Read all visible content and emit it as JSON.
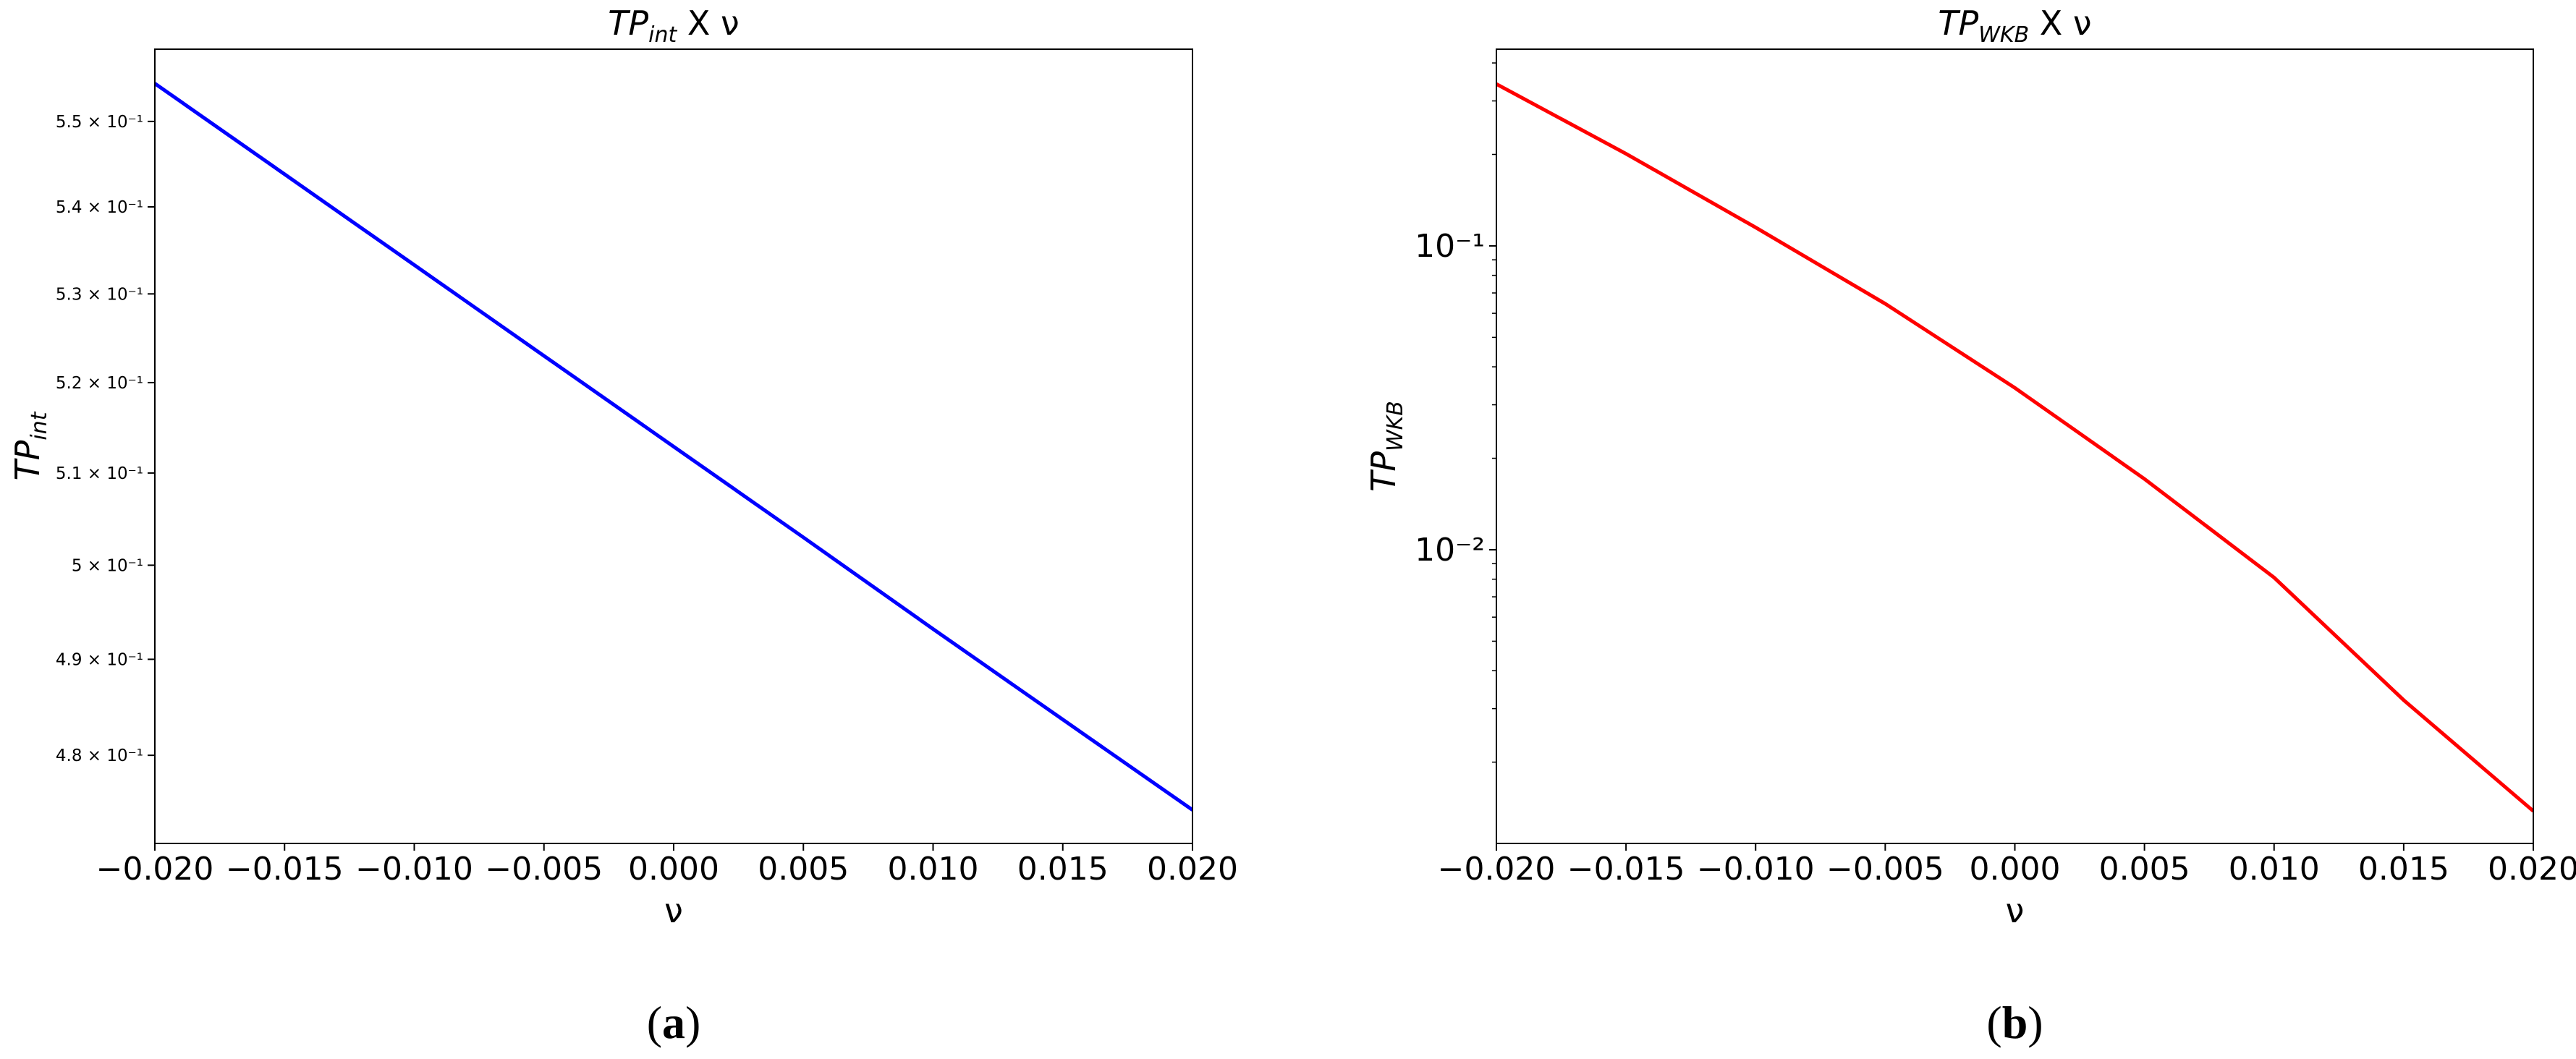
{
  "chart_data": [
    {
      "type": "line",
      "title": [
        "TP",
        "int",
        " X ν"
      ],
      "ylabel": [
        "TP",
        "int"
      ],
      "xlabel": "ν",
      "caption": [
        "(",
        "a",
        ")"
      ],
      "yscale": "log",
      "x": [
        -0.02,
        -0.015,
        -0.01,
        -0.005,
        0.0,
        0.005,
        0.01,
        0.015,
        0.02
      ],
      "series": [
        {
          "color": "#0000ff",
          "values": [
            0.5545,
            0.5438,
            0.5333,
            0.523,
            0.5129,
            0.503,
            0.4932,
            0.4837,
            0.4744
          ]
        }
      ],
      "xlim": [
        -0.02,
        0.02
      ],
      "xticks": [
        {
          "value": -0.02,
          "label": "−0.020"
        },
        {
          "value": -0.015,
          "label": "−0.015"
        },
        {
          "value": -0.01,
          "label": "−0.010"
        },
        {
          "value": -0.005,
          "label": "−0.005"
        },
        {
          "value": 0.0,
          "label": "0.000"
        },
        {
          "value": 0.005,
          "label": "0.005"
        },
        {
          "value": 0.01,
          "label": "0.010"
        },
        {
          "value": 0.015,
          "label": "0.015"
        },
        {
          "value": 0.02,
          "label": "0.020"
        }
      ],
      "ylim": [
        0.471,
        0.5586
      ],
      "yticks": [
        {
          "value": 0.48,
          "label": "4.8 × 10⁻¹"
        },
        {
          "value": 0.49,
          "label": "4.9 × 10⁻¹"
        },
        {
          "value": 0.5,
          "label": "5 × 10⁻¹"
        },
        {
          "value": 0.51,
          "label": "5.1 × 10⁻¹"
        },
        {
          "value": 0.52,
          "label": "5.2 × 10⁻¹"
        },
        {
          "value": 0.53,
          "label": "5.3 × 10⁻¹"
        },
        {
          "value": 0.54,
          "label": "5.4 × 10⁻¹"
        },
        {
          "value": 0.55,
          "label": "5.5 × 10⁻¹"
        }
      ]
    },
    {
      "type": "line",
      "title": [
        "TP",
        "WKB",
        " X ν"
      ],
      "ylabel": [
        "TP",
        "WKB"
      ],
      "xlabel": "ν",
      "caption": [
        "(",
        "b",
        ")"
      ],
      "yscale": "log",
      "x": [
        -0.02,
        -0.015,
        -0.01,
        -0.005,
        0.0,
        0.005,
        0.01,
        0.015,
        0.02
      ],
      "series": [
        {
          "color": "#ff0000",
          "values": [
            0.341,
            0.201,
            0.115,
            0.0645,
            0.0341,
            0.0171,
            0.0081,
            0.0032,
            0.00138
          ]
        }
      ],
      "xlim": [
        -0.02,
        0.02
      ],
      "xticks": [
        {
          "value": -0.02,
          "label": "−0.020"
        },
        {
          "value": -0.015,
          "label": "−0.015"
        },
        {
          "value": -0.01,
          "label": "−0.010"
        },
        {
          "value": -0.005,
          "label": "−0.005"
        },
        {
          "value": 0.0,
          "label": "0.000"
        },
        {
          "value": 0.005,
          "label": "0.005"
        },
        {
          "value": 0.01,
          "label": "0.010"
        },
        {
          "value": 0.015,
          "label": "0.015"
        },
        {
          "value": 0.02,
          "label": "0.020"
        }
      ],
      "ylim": [
        0.00108,
        0.444
      ],
      "yticks": [
        {
          "value": 0.01,
          "label": "10⁻²"
        },
        {
          "value": 0.1,
          "label": "10⁻¹"
        }
      ],
      "yminorticks": [
        0.002,
        0.003,
        0.004,
        0.005,
        0.006,
        0.007,
        0.008,
        0.009,
        0.02,
        0.03,
        0.04,
        0.05,
        0.06,
        0.07,
        0.08,
        0.09,
        0.2,
        0.3,
        0.4
      ]
    }
  ]
}
